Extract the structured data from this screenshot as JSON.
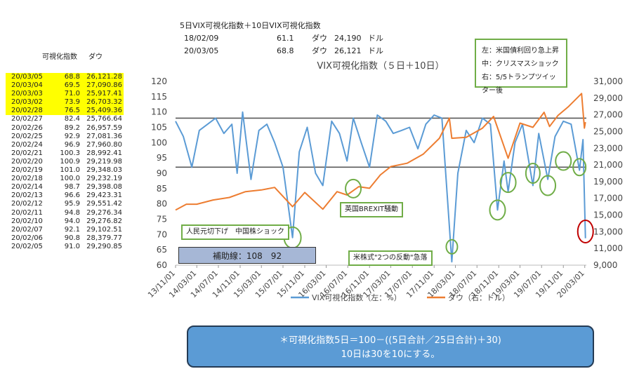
{
  "header": {
    "title": "5日VIX可視化指数＋10日VIX可視化指数",
    "rows": [
      {
        "date": "18/02/09",
        "vix": "61.1",
        "label": "ダウ",
        "dow": "24,190",
        "unit": "ドル"
      },
      {
        "date": "20/03/05",
        "vix": "68.8",
        "label": "ダウ",
        "dow": "26,121",
        "unit": "ドル"
      }
    ]
  },
  "table": {
    "col_vix": "可視化指数",
    "col_dow": "ダウ",
    "rows": [
      {
        "date": "20/03/05",
        "vix": "68.8",
        "dow": "26,121.28",
        "hl": true
      },
      {
        "date": "20/03/04",
        "vix": "69.5",
        "dow": "27,090.86",
        "hl": true
      },
      {
        "date": "20/03/03",
        "vix": "71.0",
        "dow": "25,917.41",
        "hl": true
      },
      {
        "date": "20/03/02",
        "vix": "73.9",
        "dow": "26,703.32",
        "hl": true
      },
      {
        "date": "20/02/28",
        "vix": "76.5",
        "dow": "25,409.36",
        "hl": true
      },
      {
        "date": "20/02/27",
        "vix": "82.4",
        "dow": "25,766.64",
        "hl": false
      },
      {
        "date": "20/02/26",
        "vix": "89.2",
        "dow": "26,957.59",
        "hl": false
      },
      {
        "date": "20/02/25",
        "vix": "92.9",
        "dow": "27,081.36",
        "hl": false
      },
      {
        "date": "20/02/24",
        "vix": "96.9",
        "dow": "27,960.80",
        "hl": false
      },
      {
        "date": "20/02/21",
        "vix": "100.3",
        "dow": "28,992.41",
        "hl": false
      },
      {
        "date": "20/02/20",
        "vix": "100.9",
        "dow": "29,219.98",
        "hl": false
      },
      {
        "date": "20/02/19",
        "vix": "101.0",
        "dow": "29,348.03",
        "hl": false
      },
      {
        "date": "20/02/18",
        "vix": "100.0",
        "dow": "29,232.19",
        "hl": false
      },
      {
        "date": "20/02/14",
        "vix": "98.7",
        "dow": "29,398.08",
        "hl": false
      },
      {
        "date": "20/02/13",
        "vix": "96.6",
        "dow": "29,423.31",
        "hl": false
      },
      {
        "date": "20/02/12",
        "vix": "95.9",
        "dow": "29,551.42",
        "hl": false
      },
      {
        "date": "20/02/11",
        "vix": "94.8",
        "dow": "29,276.34",
        "hl": false
      },
      {
        "date": "20/02/10",
        "vix": "94.0",
        "dow": "29,276.82",
        "hl": false
      },
      {
        "date": "20/02/07",
        "vix": "92.1",
        "dow": "29,102.51",
        "hl": false
      },
      {
        "date": "20/02/06",
        "vix": "90.8",
        "dow": "28,379.77",
        "hl": false
      },
      {
        "date": "20/02/05",
        "vix": "91.0",
        "dow": "29,290.85",
        "hl": false
      }
    ]
  },
  "legend_box": {
    "left": "左：米国債利回り急上昇",
    "mid": "中：クリスマスショック",
    "right": "右：5/5トランプツイッター後"
  },
  "annotations": {
    "aux_line": "補助線：108　92",
    "china": "人民元切下げ　中国株ショック",
    "brexit": "英国BREXIT騒動",
    "us_stock": "米株式\"2つの反動\"急落"
  },
  "formula": {
    "line1": "＊可視化指数5日＝100－((5日合計／25日合計)＋30)",
    "line2": "10日は30を10にする。"
  },
  "colors": {
    "vix": "#5b9bd5",
    "dow": "#ed7d31",
    "highlight": "#ffff00",
    "circle_green": "#70ad47",
    "circle_red": "#c00000"
  },
  "chart_data": {
    "type": "line",
    "title": "VIX可視化指数（５日＋10日）",
    "x_tick_labels": [
      "13/11/01",
      "14/03/01",
      "14/07/01",
      "14/11/01",
      "15/03/01",
      "15/07/01",
      "15/11/01",
      "16/03/01",
      "16/07/01",
      "16/11/01",
      "17/03/01",
      "17/07/01",
      "17/11/01",
      "18/03/01",
      "18/07/01",
      "18/11/01",
      "19/03/01",
      "19/07/01",
      "19/11/01",
      "20/03/01"
    ],
    "y_left": {
      "ticks": [
        "60",
        "65",
        "70",
        "75",
        "80",
        "85",
        "90",
        "95",
        "100",
        "105",
        "110",
        "115",
        "120"
      ],
      "range": [
        60,
        120
      ]
    },
    "y_right": {
      "ticks": [
        "9,000",
        "11,000",
        "13,000",
        "15,000",
        "17,000",
        "19,000",
        "21,000",
        "23,000",
        "25,000",
        "27,000",
        "29,000",
        "31,000"
      ],
      "range": [
        9000,
        31000
      ]
    },
    "reference_lines": [
      108,
      92
    ],
    "legend": [
      "VIX可視化指数（左：%）",
      "ダウ（右：ドル）"
    ],
    "series": [
      {
        "name": "VIX可視化指数（左：%）",
        "axis": "left",
        "x": [
          "13/11/01",
          "13/12/15",
          "14/02/01",
          "14/03/15",
          "14/05/01",
          "14/06/15",
          "14/08/01",
          "14/09/15",
          "14/10/15",
          "14/11/15",
          "15/01/01",
          "15/02/15",
          "15/04/01",
          "15/05/15",
          "15/07/01",
          "15/08/24",
          "15/10/01",
          "15/11/15",
          "16/01/01",
          "16/02/11",
          "16/04/01",
          "16/05/15",
          "16/06/27",
          "16/08/01",
          "16/09/15",
          "16/11/01",
          "16/12/15",
          "17/02/01",
          "17/03/15",
          "17/05/01",
          "17/06/15",
          "17/08/01",
          "17/09/15",
          "17/11/01",
          "17/12/15",
          "18/02/09",
          "18/03/15",
          "18/05/01",
          "18/06/15",
          "18/08/01",
          "18/09/15",
          "18/10/25",
          "18/12/01",
          "18/12/24",
          "19/02/01",
          "19/03/15",
          "19/05/13",
          "19/06/15",
          "19/08/05",
          "19/09/15",
          "19/11/01",
          "19/12/15",
          "20/01/31",
          "20/02/20",
          "20/03/05"
        ],
        "y": [
          107,
          102,
          92,
          104,
          106,
          108,
          103,
          106,
          90,
          110,
          88,
          104,
          106,
          100,
          92,
          69,
          97,
          105,
          90,
          86,
          107,
          103,
          94,
          108,
          100,
          92,
          109,
          107,
          103,
          104,
          105,
          98,
          106,
          109,
          108,
          61.1,
          90,
          104,
          100,
          108,
          106,
          78,
          94,
          84,
          100,
          106,
          86,
          103,
          88,
          102,
          107,
          106,
          91,
          101,
          68.8
        ]
      },
      {
        "name": "ダウ（右：ドル）",
        "axis": "right",
        "x": [
          "13/11/01",
          "14/01/01",
          "14/03/01",
          "14/06/01",
          "14/09/01",
          "14/12/01",
          "15/03/01",
          "15/05/15",
          "15/08/24",
          "15/11/01",
          "16/02/11",
          "16/05/01",
          "16/06/27",
          "16/09/01",
          "16/11/01",
          "17/01/01",
          "17/03/01",
          "17/06/01",
          "17/09/01",
          "17/12/01",
          "18/01/26",
          "18/02/09",
          "18/05/01",
          "18/08/01",
          "18/10/03",
          "18/12/24",
          "19/03/01",
          "19/05/13",
          "19/07/15",
          "19/08/15",
          "19/10/01",
          "19/12/01",
          "20/02/12",
          "20/02/28",
          "20/03/05"
        ],
        "y": [
          15600,
          16300,
          16300,
          16800,
          17100,
          17800,
          18000,
          18300,
          16000,
          17700,
          15700,
          17800,
          17400,
          18400,
          18200,
          19800,
          20800,
          21200,
          22300,
          24200,
          26600,
          24190,
          24300,
          25400,
          26800,
          21800,
          26000,
          25500,
          27300,
          25600,
          26900,
          28000,
          29551,
          25409,
          26121
        ]
      }
    ]
  }
}
